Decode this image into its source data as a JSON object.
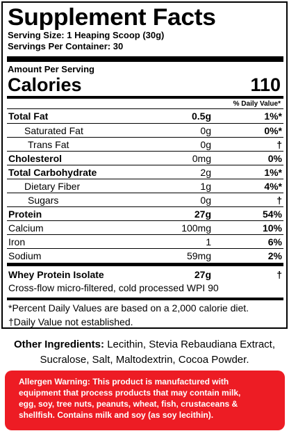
{
  "title": "Supplement Facts",
  "serving_size": "Serving Size: 1 Heaping Scoop (30g)",
  "servings_per_container": "Servings Per Container: 30",
  "amount_per_serving": "Amount Per Serving",
  "calories_label": "Calories",
  "calories_value": "110",
  "dv_header": "% Daily Value*",
  "nutrients": [
    {
      "name": "Total Fat",
      "amount": "0.5g",
      "dv": "1%*"
    },
    {
      "name": "Saturated Fat",
      "amount": "0g",
      "dv": "0%*"
    },
    {
      "name": "Trans Fat",
      "amount": "0g",
      "dv": "†"
    },
    {
      "name": "Cholesterol",
      "amount": "0mg",
      "dv": "0%"
    },
    {
      "name": "Total Carbohydrate",
      "amount": "2g",
      "dv": "1%*"
    },
    {
      "name": "Dietary Fiber",
      "amount": "1g",
      "dv": "4%*"
    },
    {
      "name": "Sugars",
      "amount": "0g",
      "dv": "†"
    },
    {
      "name": "Protein",
      "amount": "27g",
      "dv": "54%"
    },
    {
      "name": "Calcium",
      "amount": "100mg",
      "dv": "10%"
    },
    {
      "name": "Iron",
      "amount": "1",
      "dv": "6%"
    },
    {
      "name": "Sodium",
      "amount": "59mg",
      "dv": "2%"
    }
  ],
  "whey": {
    "name": "Whey Protein Isolate",
    "amount": "27g",
    "dv": "†",
    "note": "Cross-flow micro-filtered, cold processed WPI 90"
  },
  "footnote_dv": "*Percent Daily Values are based on a 2,000 calorie diet.",
  "footnote_dagger": "†Daily Value not established.",
  "other_ingredients_label": "Other Ingredients:",
  "other_ingredients_line1": "Lecithin, Stevia Rebaudiana Extract,",
  "other_ingredients_line2": "Sucralose, Salt, Maltodextrin, Cocoa Powder.",
  "allergen_lines": [
    "Allergen Warning: This product is manufactured with",
    "equipment that process products that may contain milk,",
    "egg, soy, tree nuts, peanuts, wheat, fish, crustaceans &",
    "shellfish. Contains milk and soy (as soy lecithin)."
  ],
  "colors": {
    "allergen_bg": "#ed1c24",
    "text": "#000000",
    "allergen_text": "#ffffff"
  }
}
